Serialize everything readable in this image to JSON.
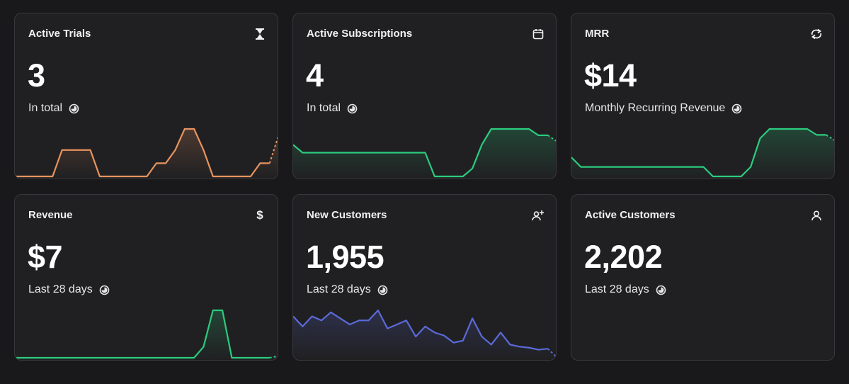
{
  "cards": [
    {
      "title": "Active Trials",
      "value": "3",
      "subtitle": "In total",
      "icon": "hourglass-icon",
      "color": "#e8935f",
      "trend": [
        0,
        0,
        0,
        0,
        0,
        1,
        1,
        1,
        1,
        0,
        0,
        0,
        0,
        0,
        0,
        0.5,
        0.5,
        1,
        1.8,
        1.8,
        1,
        0,
        0,
        0,
        0,
        0,
        0.5,
        0.5,
        1.6
      ]
    },
    {
      "title": "Active Subscriptions",
      "value": "4",
      "subtitle": "In total",
      "icon": "calendar-icon",
      "color": "#2ccb7e",
      "trend": [
        4,
        3.5,
        3.5,
        3.5,
        3.5,
        3.5,
        3.5,
        3.5,
        3.5,
        3.5,
        3.5,
        3.5,
        3.5,
        3.5,
        3.5,
        2,
        2,
        2,
        2,
        2.5,
        4,
        5,
        5,
        5,
        5,
        5,
        4.6,
        4.6,
        4.2
      ]
    },
    {
      "title": "MRR",
      "value": "$14",
      "subtitle": "Monthly Recurring Revenue",
      "icon": "refresh-icon",
      "color": "#2ccb7e",
      "trend": [
        12,
        11.2,
        11.2,
        11.2,
        11.2,
        11.2,
        11.2,
        11.2,
        11.2,
        11.2,
        11.2,
        11.2,
        11.2,
        11.2,
        11.2,
        10.4,
        10.4,
        10.4,
        10.4,
        11.2,
        13.6,
        14.4,
        14.4,
        14.4,
        14.4,
        14.4,
        13.9,
        13.9,
        13.4
      ]
    },
    {
      "title": "Revenue",
      "value": "$7",
      "subtitle": "Last 28 days",
      "icon": "dollar-icon",
      "color": "#2ccb7e",
      "trend": [
        0,
        0,
        0,
        0,
        0,
        0,
        0,
        0,
        0,
        0,
        0,
        0,
        0,
        0,
        0,
        0,
        0,
        0,
        0,
        0,
        0.6,
        2.6,
        2.6,
        0,
        0,
        0,
        0,
        0,
        0.1
      ]
    },
    {
      "title": "New Customers",
      "value": "1,955",
      "subtitle": "Last 28 days",
      "icon": "user-plus-icon",
      "color": "#5b6ad8",
      "trend": [
        90,
        80,
        90,
        86,
        94,
        88,
        82,
        86,
        86,
        96,
        78,
        82,
        86,
        70,
        80,
        74,
        71,
        64,
        66,
        88,
        70,
        62,
        74,
        62,
        60,
        59,
        57,
        58,
        49
      ]
    },
    {
      "title": "Active Customers",
      "value": "2,202",
      "subtitle": "Last 28 days",
      "icon": "user-icon",
      "color": "#2ccb7e",
      "trend": []
    }
  ]
}
